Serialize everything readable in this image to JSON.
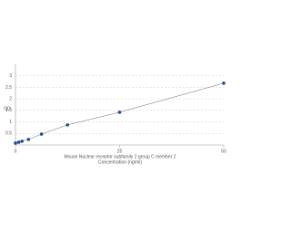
{
  "chart_data": {
    "type": "scatter",
    "x_label": "Mouse Nuclear receptor subfamily 2 group C member 2",
    "x_label_2": "Concentration (ng/ml)",
    "y_label": "OD",
    "x": [
      0,
      0.78,
      1.56,
      3.125,
      6.25,
      12.5,
      25,
      50
    ],
    "values": [
      0.08,
      0.12,
      0.16,
      0.24,
      0.47,
      0.87,
      1.42,
      2.68
    ],
    "color": "#1f4e8c",
    "xlim": [
      0,
      50
    ],
    "xticks": [
      0,
      25,
      50
    ],
    "ylim": [
      0,
      3.5
    ],
    "yticks": [
      0.5,
      1,
      1.5,
      2,
      2.5,
      3
    ],
    "grid": true
  }
}
